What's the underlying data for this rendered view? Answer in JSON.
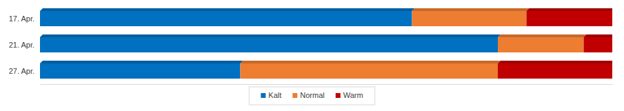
{
  "chart_data": {
    "type": "bar",
    "orientation": "horizontal",
    "stacked": true,
    "categories": [
      "17. Apr.",
      "21. Apr.",
      "27. Apr."
    ],
    "series": [
      {
        "name": "Kalt",
        "color": "#0070c0",
        "values": [
          65,
          80,
          35
        ]
      },
      {
        "name": "Normal",
        "color": "#ed7d31",
        "values": [
          20,
          15,
          45
        ]
      },
      {
        "name": "Warm",
        "color": "#c00000",
        "values": [
          15,
          5,
          20
        ]
      }
    ],
    "xlim": [
      0,
      100
    ],
    "tick_labels": "y",
    "legend": "bottom"
  }
}
